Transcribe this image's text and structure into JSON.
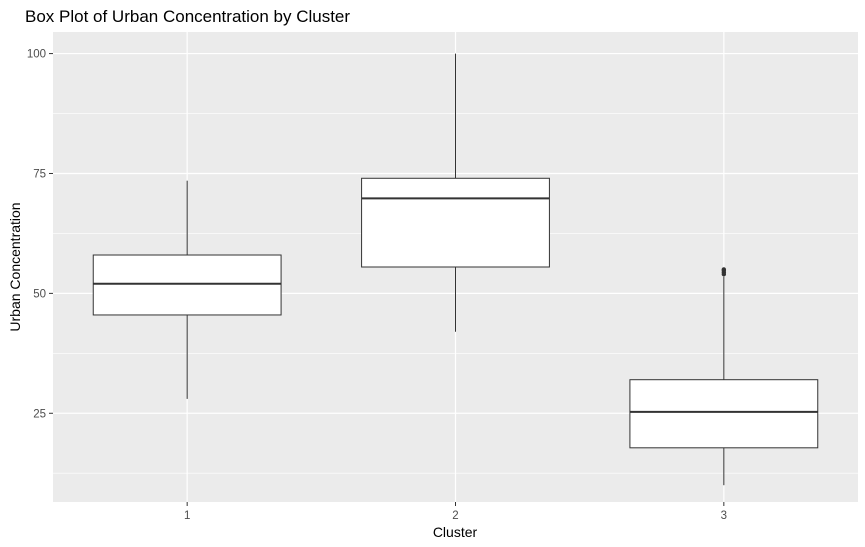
{
  "chart_data": {
    "type": "boxplot",
    "title": "Box Plot of Urban Concentration by Cluster",
    "xlabel": "Cluster",
    "ylabel": "Urban Concentration",
    "categories": [
      "1",
      "2",
      "3"
    ],
    "yticks": [
      25,
      50,
      75,
      100
    ],
    "ylim": [
      6.5,
      104.5
    ],
    "grid": true,
    "background_color": "#ebebeb",
    "grid_color": "#ffffff",
    "box_fill": "#ffffff",
    "line_color": "#333333",
    "boxes": [
      {
        "category": "1",
        "min": 28,
        "q1": 45.5,
        "median": 52,
        "q3": 58,
        "max": 73.5,
        "outliers": []
      },
      {
        "category": "2",
        "min": 42,
        "q1": 55.5,
        "median": 69.8,
        "q3": 74,
        "max": 100,
        "outliers": []
      },
      {
        "category": "3",
        "min": 10,
        "q1": 17.8,
        "median": 25.3,
        "q3": 32,
        "max": 53.5,
        "outliers": [
          54,
          54.4,
          54.8,
          55
        ]
      }
    ]
  }
}
